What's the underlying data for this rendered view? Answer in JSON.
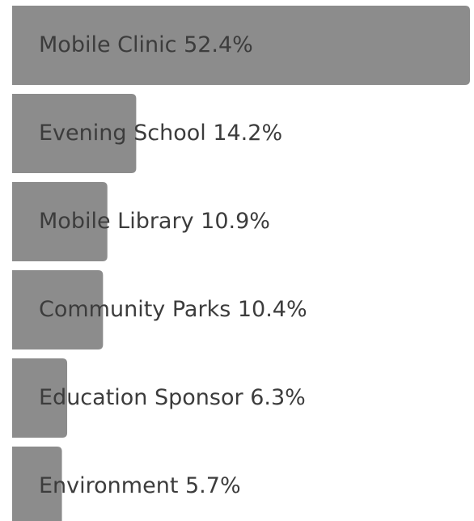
{
  "chart_data": {
    "type": "bar",
    "orientation": "horizontal",
    "categories": [
      "Mobile Clinic",
      "Evening School",
      "Mobile Library",
      "Community Parks",
      "Education Sponsor",
      "Environment"
    ],
    "values": [
      52.4,
      14.2,
      10.9,
      10.4,
      6.3,
      5.7
    ],
    "value_labels": [
      "52.4%",
      "14.2%",
      "10.9%",
      "10.4%",
      "6.3%",
      "5.7%"
    ],
    "color": "#8c8c8c"
  }
}
